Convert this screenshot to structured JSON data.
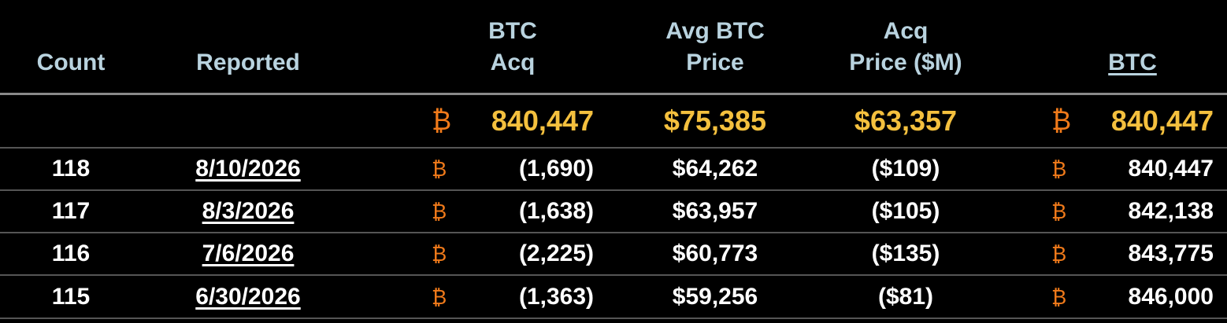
{
  "currency_symbol": "₿",
  "table": {
    "headers": [
      [
        "Count"
      ],
      [
        "Reported"
      ],
      [
        "BTC",
        "Acq"
      ],
      [
        "Avg BTC",
        "Price"
      ],
      [
        "Acq",
        "Price ($M)"
      ],
      [
        "BTC"
      ]
    ],
    "totals": [
      "840,447",
      "$75,385",
      "$63,357",
      "840,447"
    ],
    "rows": [
      [
        "118",
        "8/10/2026",
        "(1,690)",
        "$64,262",
        "($109)",
        "840,447"
      ],
      [
        "117",
        "8/3/2026",
        "(1,638)",
        "$63,957",
        "($105)",
        "842,138"
      ],
      [
        "116",
        "7/6/2026",
        "(2,225)",
        "$60,773",
        "($135)",
        "843,775"
      ],
      [
        "115",
        "6/30/2026",
        "(1,363)",
        "$59,256",
        "($81)",
        "846,000"
      ]
    ]
  }
}
